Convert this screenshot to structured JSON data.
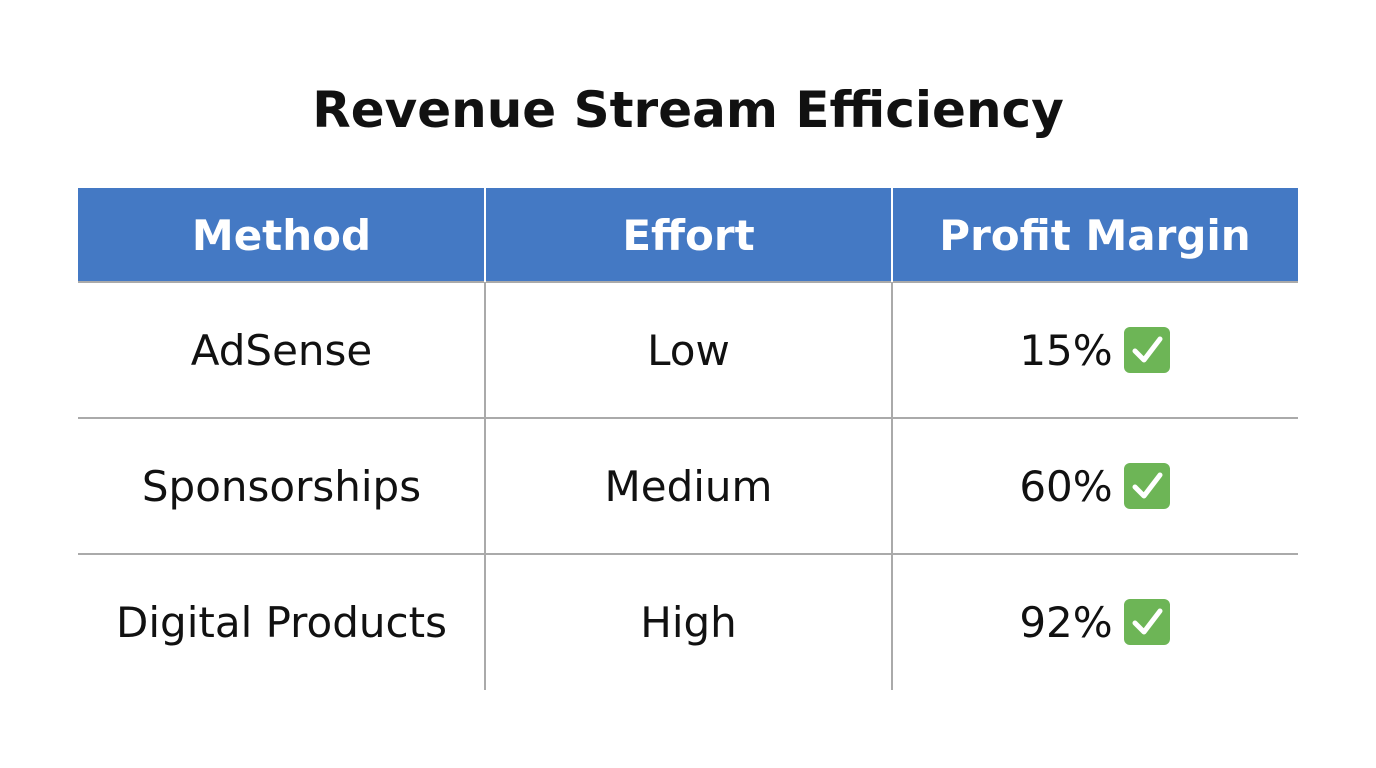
{
  "title": "Revenue Stream Efficiency",
  "table": {
    "header": [
      "Method",
      "Effort",
      "Profit Margin"
    ],
    "rows": [
      [
        "AdSense",
        "Low",
        "15%"
      ],
      [
        "Sponsorships",
        "Medium",
        "60%"
      ],
      [
        "Digital Products",
        "High",
        "92%"
      ]
    ]
  }
}
